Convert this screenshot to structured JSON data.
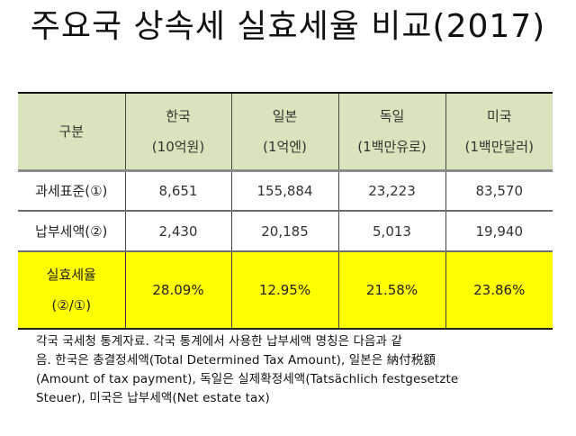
{
  "title": "주요국 상속세 실효세율 비교(2017)",
  "table": {
    "header": {
      "label": "구분",
      "columns": [
        {
          "country": "한국",
          "unit": "(10억원)"
        },
        {
          "country": "일본",
          "unit": "(1억엔)"
        },
        {
          "country": "독일",
          "unit": "(1백만유로)"
        },
        {
          "country": "미국",
          "unit": "(1백만달러)"
        }
      ]
    },
    "rows": [
      {
        "label": "과세표준(①)",
        "values": [
          "8,651",
          "155,884",
          "23,223",
          "83,570"
        ]
      },
      {
        "label": "납부세액(②)",
        "values": [
          "2,430",
          "20,185",
          "5,013",
          "19,940"
        ]
      }
    ],
    "rate_row": {
      "label_line1": "실효세율",
      "label_line2": "(②/①)",
      "values": [
        "28.09%",
        "12.95%",
        "21.58%",
        "23.86%"
      ]
    },
    "colors": {
      "header_bg": "#d8e4bc",
      "rate_bg": "#ffff00"
    }
  },
  "note": {
    "lines": [
      "각국 국세청 통계자료. 각국 통계에서 사용한 납부세액 명칭은 다음과 같",
      "음. 한국은 총결정세액(Total Determined Tax Amount), 일본은 納付税額",
      "(Amount of tax payment), 독일은 실제확정세액(Tatsächlich festgesetzte",
      "Steuer), 미국은 납부세액(Net estate tax)"
    ]
  }
}
